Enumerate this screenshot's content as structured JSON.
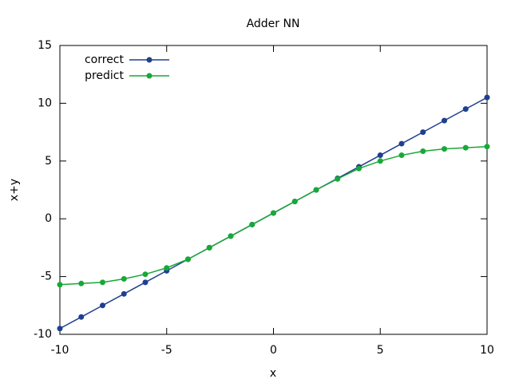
{
  "chart_data": {
    "type": "line",
    "title": "Adder NN",
    "x_label": "x",
    "y_label": "x+y",
    "x": [
      -10,
      -9,
      -8,
      -7,
      -6,
      -5,
      -4,
      -3,
      -2,
      -1,
      0,
      1,
      2,
      3,
      4,
      5,
      6,
      7,
      8,
      9,
      10
    ],
    "series": [
      {
        "name": "correct",
        "color": "#1f3f8f",
        "values": [
          -9.5,
          -8.5,
          -7.5,
          -6.5,
          -5.5,
          -4.5,
          -3.5,
          -2.5,
          -1.5,
          -0.5,
          0.5,
          1.5,
          2.5,
          3.5,
          4.5,
          5.5,
          6.5,
          7.5,
          8.5,
          9.5,
          10.5
        ]
      },
      {
        "name": "predict",
        "color": "#18a838",
        "values": [
          -5.7,
          -5.6,
          -5.5,
          -5.2,
          -4.8,
          -4.25,
          -3.5,
          -2.5,
          -1.5,
          -0.5,
          0.5,
          1.5,
          2.5,
          3.45,
          4.35,
          5.0,
          5.5,
          5.85,
          6.05,
          6.15,
          6.25
        ]
      }
    ],
    "xlim": [
      -10,
      10
    ],
    "xticks": [
      -10,
      -5,
      0,
      5,
      10
    ],
    "ylim": [
      -10,
      15
    ],
    "yticks": [
      -10,
      -5,
      0,
      5,
      10,
      15
    ],
    "grid": false,
    "legend": "upper left"
  }
}
